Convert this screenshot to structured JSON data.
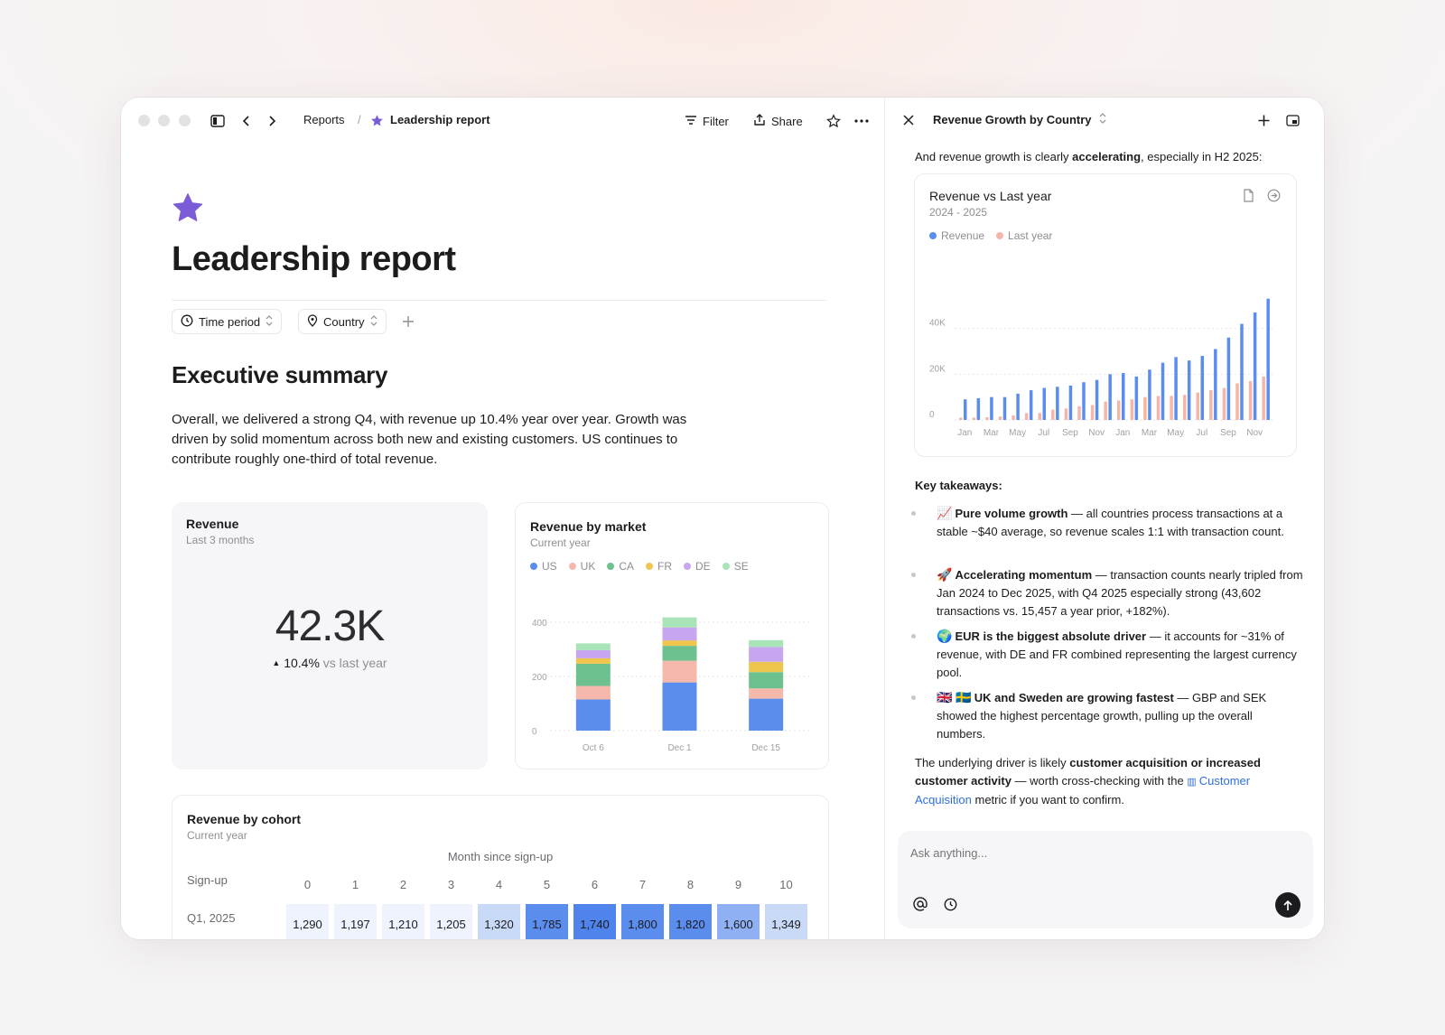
{
  "toolbar": {
    "breadcrumb_parent": "Reports",
    "breadcrumb_sep": "/",
    "breadcrumb_current": "Leadership report",
    "filter": "Filter",
    "share": "Share"
  },
  "page": {
    "title": "Leadership report",
    "chips": [
      "Time period",
      "Country"
    ]
  },
  "summary": {
    "heading": "Executive summary",
    "text": "Overall, we delivered a strong Q4, with revenue up 10.4% year over year. Growth was driven by solid momentum across both new and existing customers. US continues to contribute roughly one-third of total revenue."
  },
  "revenue_card": {
    "title": "Revenue",
    "subtitle": "Last 3 months",
    "value": "42.3K",
    "delta": "10.4%",
    "delta_suffix": "vs last year"
  },
  "cohort": {
    "title": "Revenue by cohort",
    "subtitle": "Current year",
    "axis_label": "Month since sign-up",
    "row_header": "Sign-up",
    "columns": [
      "0",
      "1",
      "2",
      "3",
      "4",
      "5",
      "6",
      "7",
      "8",
      "9",
      "10"
    ],
    "rows": [
      {
        "label": "Q1, 2025",
        "values": [
          "1,290",
          "1,197",
          "1,210",
          "1,205",
          "1,320",
          "1,785",
          "1,740",
          "1,800",
          "1,820",
          "1,600",
          "1,349"
        ]
      }
    ]
  },
  "panel": {
    "title": "Revenue Growth by Country",
    "intro_pre": "And revenue growth is clearly ",
    "intro_bold": "accelerating",
    "intro_post": ", especially in H2 2025:",
    "takeaways_heading": "Key takeaways:",
    "takeaways": [
      {
        "emoji": "📈",
        "bold": "Pure volume growth",
        "text": " — all countries process transactions at a stable ~$40 average, so revenue scales 1:1 with transaction count."
      },
      {
        "emoji": "🚀",
        "bold": "Accelerating momentum",
        "text": " — transaction counts nearly tripled from Jan 2024 to Dec 2025, with Q4 2025 especially strong (43,602 transactions vs. 15,457 a year prior, +182%)."
      },
      {
        "emoji": "🌍",
        "bold": "EUR is the biggest absolute driver",
        "text": " — it accounts for ~31% of revenue, with DE and FR combined representing the largest currency pool."
      },
      {
        "emoji": "🇬🇧 🇸🇪",
        "bold": "UK and Sweden are growing fastest",
        "text": " — GBP and SEK showed the highest percentage growth, pulling up the overall numbers."
      }
    ],
    "footer_pre": "The underlying driver is likely ",
    "footer_bold": "customer acquisition or increased customer activity",
    "footer_mid": " — worth cross-checking with the ",
    "footer_link": "Customer Acquisition",
    "footer_post": " metric if you want to confirm.",
    "ask_placeholder": "Ask anything..."
  },
  "colors": {
    "accent": "#7b5cd6",
    "blue": "#5b8def",
    "salmon": "#f4b6a8",
    "link": "#2f6fdc"
  },
  "chart_data": [
    {
      "type": "bar",
      "stacked": true,
      "title": "Revenue by market",
      "subtitle": "Current year",
      "categories": [
        "Oct 6",
        "Dec 1",
        "Dec 15"
      ],
      "series": [
        {
          "name": "US",
          "color": "#5b8def",
          "values": [
            115,
            178,
            118
          ]
        },
        {
          "name": "UK",
          "color": "#f6b8aa",
          "values": [
            50,
            80,
            38
          ]
        },
        {
          "name": "CA",
          "color": "#6cc18f",
          "values": [
            82,
            55,
            60
          ]
        },
        {
          "name": "FR",
          "color": "#efc64d",
          "values": [
            20,
            20,
            38
          ]
        },
        {
          "name": "DE",
          "color": "#c7a6ef",
          "values": [
            30,
            48,
            55
          ]
        },
        {
          "name": "SE",
          "color": "#a9e3b8",
          "values": [
            25,
            37,
            25
          ]
        }
      ],
      "yticks": [
        "0",
        "200",
        "400"
      ],
      "ylim": [
        0,
        460
      ],
      "grid": true,
      "legend": "top-left"
    },
    {
      "type": "bar",
      "title": "Revenue vs Last year",
      "subtitle": "2024 - 2025",
      "xtick_labels": [
        "Jan",
        "Mar",
        "May",
        "Jul",
        "Sep",
        "Nov",
        "Jan",
        "Mar",
        "May",
        "Jul",
        "Sep",
        "Nov"
      ],
      "series": [
        {
          "name": "Revenue",
          "color": "#5b8def",
          "values": [
            9000,
            9500,
            10000,
            10000,
            11500,
            13000,
            14000,
            14500,
            15000,
            16500,
            17500,
            20000,
            20500,
            19000,
            22000,
            25000,
            27500,
            26000,
            28000,
            31000,
            36000,
            42000,
            47000,
            53000
          ]
        },
        {
          "name": "Last year",
          "color": "#f4b6a8",
          "values": [
            1000,
            1000,
            1200,
            1500,
            2000,
            3000,
            3000,
            4500,
            5000,
            6000,
            6500,
            8000,
            8500,
            9000,
            10000,
            10500,
            10500,
            11000,
            12000,
            13000,
            14000,
            16000,
            17000,
            19000
          ]
        }
      ],
      "yticks": [
        "0",
        "20K",
        "40K"
      ],
      "ylim": [
        0,
        60000
      ],
      "grid": true,
      "legend": "top-left"
    }
  ]
}
